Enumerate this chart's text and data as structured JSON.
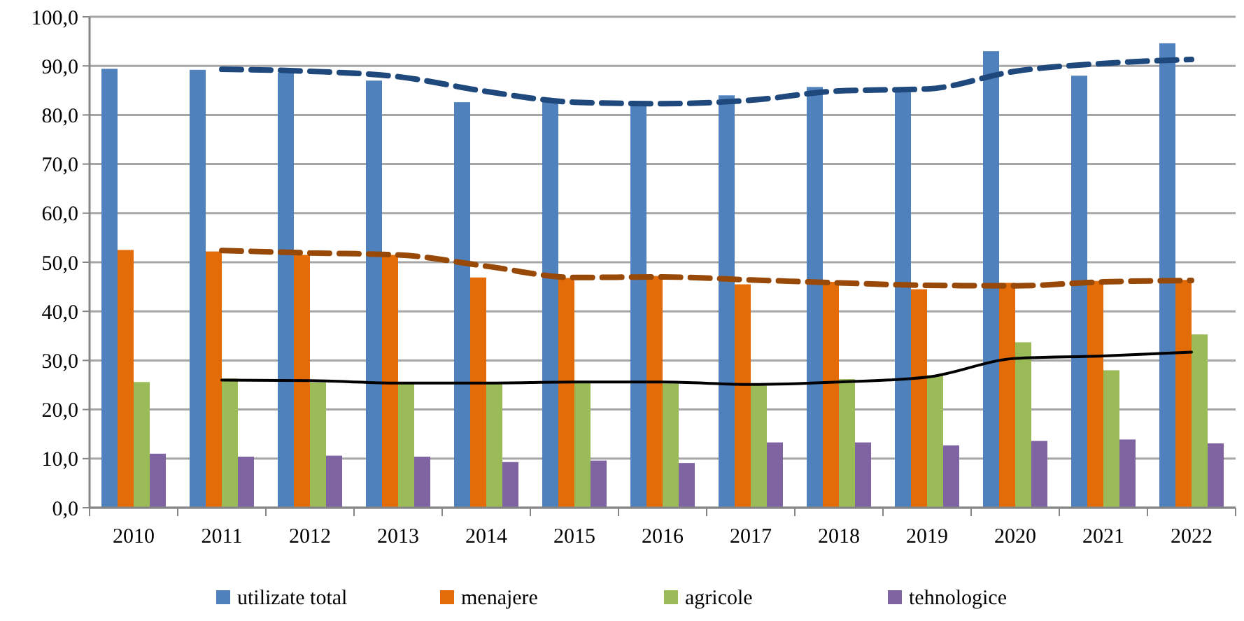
{
  "chart_data": {
    "type": "bar",
    "categories": [
      "2010",
      "2011",
      "2012",
      "2013",
      "2014",
      "2015",
      "2016",
      "2017",
      "2018",
      "2019",
      "2020",
      "2021",
      "2022"
    ],
    "series": [
      {
        "name": "utilizate total",
        "color": "#4f81bd",
        "values": [
          89.4,
          89.2,
          88.6,
          87.0,
          82.6,
          82.6,
          82.0,
          84.0,
          85.7,
          84.8,
          93.0,
          88.0,
          94.6
        ]
      },
      {
        "name": "menajere",
        "color": "#e36c09",
        "values": [
          52.5,
          52.2,
          51.5,
          51.5,
          46.9,
          46.8,
          47.2,
          45.5,
          46.0,
          44.5,
          45.8,
          46.2,
          46.4
        ]
      },
      {
        "name": "agricole",
        "color": "#9bbb59",
        "values": [
          25.6,
          26.3,
          25.5,
          25.3,
          25.4,
          25.8,
          25.3,
          24.9,
          26.2,
          27.0,
          33.7,
          28.0,
          35.3
        ]
      },
      {
        "name": "tehnologice",
        "color": "#8064a2",
        "values": [
          11.0,
          10.4,
          10.6,
          10.4,
          9.3,
          9.6,
          9.1,
          13.3,
          13.3,
          12.7,
          13.6,
          13.9,
          13.1
        ]
      },
      {
        "type": "line",
        "color": "#1f497d",
        "line_style": "dashed",
        "values": [
          null,
          89.3,
          88.9,
          87.8,
          84.8,
          82.6,
          82.3,
          83.0,
          84.9,
          85.3,
          88.9,
          90.5,
          91.3
        ]
      },
      {
        "type": "line",
        "color": "#984807",
        "line_style": "dashed",
        "values": [
          null,
          52.4,
          51.9,
          51.5,
          49.2,
          46.9,
          47.0,
          46.4,
          45.8,
          45.3,
          45.2,
          46.0,
          46.3
        ]
      },
      {
        "type": "line",
        "color": "#000000",
        "line_style": "solid",
        "values": [
          null,
          26.0,
          25.9,
          25.4,
          25.4,
          25.6,
          25.6,
          25.1,
          25.6,
          26.6,
          30.4,
          30.9,
          31.7
        ]
      }
    ],
    "ylim": [
      0,
      100
    ],
    "yticks": [
      {
        "value": 0,
        "label": "0,0"
      },
      {
        "value": 10,
        "label": "10,0"
      },
      {
        "value": 20,
        "label": "20,0"
      },
      {
        "value": 30,
        "label": "30,0"
      },
      {
        "value": 40,
        "label": "40,0"
      },
      {
        "value": 50,
        "label": "50,0"
      },
      {
        "value": 60,
        "label": "60,0"
      },
      {
        "value": 70,
        "label": "70,0"
      },
      {
        "value": 80,
        "label": "80,0"
      },
      {
        "value": 90,
        "label": "90,0"
      },
      {
        "value": 100,
        "label": "100,0"
      }
    ],
    "grid": "y",
    "legend": "bottom"
  }
}
